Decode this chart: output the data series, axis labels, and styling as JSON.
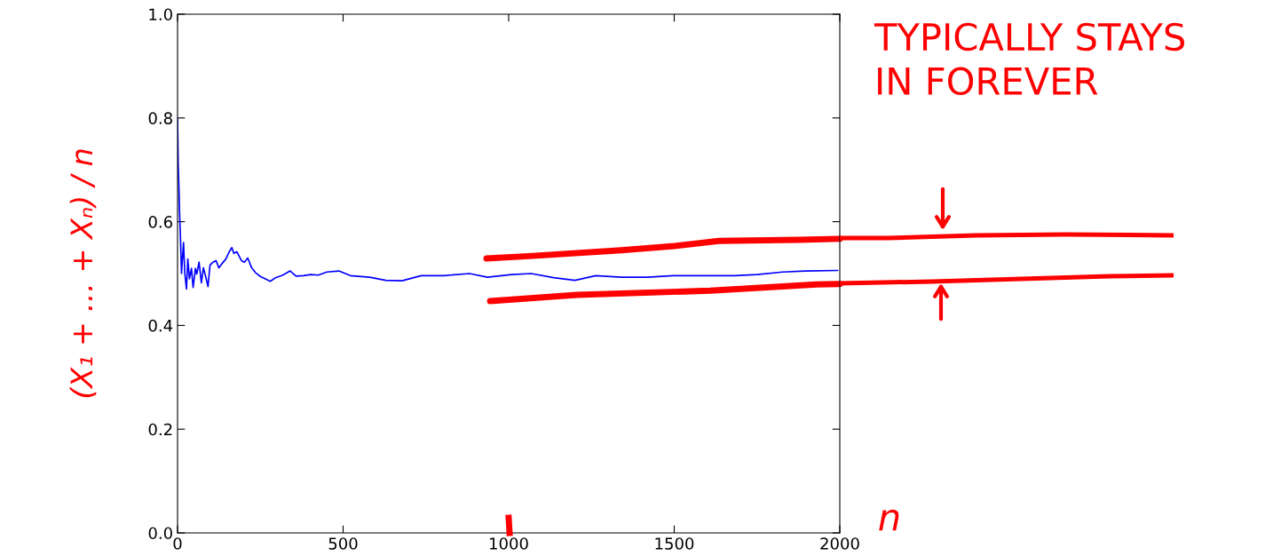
{
  "chart_data": {
    "type": "line",
    "xlabel": "n",
    "ylabel": "(X₁ + … + Xₙ) / n",
    "annotations": [
      "TYPICALLY STAYS\nIN FOREVER"
    ],
    "xlim": [
      0,
      2000
    ],
    "xticks": [
      0,
      500,
      1000,
      1500,
      2000
    ],
    "ylim": [
      0,
      1
    ],
    "yticks": [
      {
        "value": 0,
        "label": "0.0"
      },
      {
        "value": 0.2,
        "label": "0.2"
      },
      {
        "value": 0.4,
        "label": "0.4"
      },
      {
        "value": 0.6,
        "label": "0.6"
      },
      {
        "value": 0.8,
        "label": "0.8"
      },
      {
        "value": 1,
        "label": "1.0"
      }
    ],
    "grid": false,
    "legend": false,
    "marker": "none",
    "line_style": "solid",
    "series": [
      {
        "color": "#0000ff",
        "x": [
          0,
          2,
          4,
          6,
          9,
          12,
          18,
          22,
          27,
          31,
          36,
          42,
          47,
          54,
          58,
          65,
          72,
          78,
          85,
          92,
          98,
          107,
          116,
          125,
          134,
          146,
          156,
          164,
          170,
          179,
          193,
          202,
          212,
          224,
          235,
          251,
          264,
          280,
          296,
          318,
          340,
          358,
          380,
          402,
          425,
          451,
          487,
          522,
          580,
          629,
          678,
          736,
          804,
          882,
          936,
          1009,
          1068,
          1136,
          1200,
          1263,
          1341,
          1419,
          1497,
          1585,
          1682,
          1750,
          1828,
          1896,
          1994
        ],
        "values": [
          0.8,
          0.71,
          0.67,
          0.62,
          0.565,
          0.5,
          0.56,
          0.5,
          0.47,
          0.528,
          0.49,
          0.51,
          0.473,
          0.51,
          0.499,
          0.522,
          0.482,
          0.511,
          0.494,
          0.475,
          0.516,
          0.522,
          0.525,
          0.511,
          0.519,
          0.528,
          0.542,
          0.55,
          0.539,
          0.542,
          0.525,
          0.522,
          0.53,
          0.511,
          0.502,
          0.494,
          0.49,
          0.485,
          0.492,
          0.497,
          0.505,
          0.495,
          0.496,
          0.498,
          0.497,
          0.503,
          0.505,
          0.496,
          0.493,
          0.487,
          0.486,
          0.496,
          0.496,
          0.5,
          0.493,
          0.498,
          0.5,
          0.492,
          0.487,
          0.496,
          0.493,
          0.493,
          0.496,
          0.496,
          0.496,
          0.498,
          0.503,
          0.505,
          0.506
        ]
      },
      {
        "color": "#ff0000",
        "x": [
          933,
          1072,
          1340,
          1501,
          1635,
          1877,
          2000
        ],
        "values": [
          0.529,
          0.534,
          0.545,
          0.553,
          0.563,
          0.565,
          0.567
        ]
      },
      {
        "color": "#ff0000",
        "x": [
          944,
          1206,
          1609,
          1930,
          2000
        ],
        "values": [
          0.447,
          0.459,
          0.467,
          0.479,
          0.48
        ]
      }
    ]
  }
}
